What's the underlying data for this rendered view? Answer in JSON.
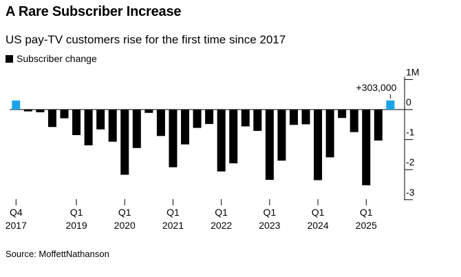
{
  "header": {
    "title": "A Rare Subscriber Increase",
    "subtitle": "US pay-TV customers rise for the first time since 2017"
  },
  "legend": {
    "label": "Subscriber change"
  },
  "source": "Source: MoffettNathanson",
  "colors": {
    "bar": "#000000",
    "highlight": "#1aa3e8",
    "axis": "#000000"
  },
  "chart_data": {
    "type": "bar",
    "ylabel": "",
    "ylim": [
      -3.1,
      1.0
    ],
    "y_ticks": [
      {
        "value": 1,
        "label": "1M"
      },
      {
        "value": 0,
        "label": "0"
      },
      {
        "value": -1,
        "label": "-1"
      },
      {
        "value": -2,
        "label": "-2"
      },
      {
        "value": -3,
        "label": "-3"
      }
    ],
    "categories": [
      "Q4 2017",
      "Q1 2018",
      "Q2 2018",
      "Q3 2018",
      "Q4 2018",
      "Q1 2019",
      "Q2 2019",
      "Q3 2019",
      "Q4 2019",
      "Q1 2020",
      "Q2 2020",
      "Q3 2020",
      "Q4 2020",
      "Q1 2021",
      "Q2 2021",
      "Q3 2021",
      "Q4 2021",
      "Q1 2022",
      "Q2 2022",
      "Q3 2022",
      "Q4 2022",
      "Q1 2023",
      "Q2 2023",
      "Q3 2023",
      "Q4 2023",
      "Q1 2024",
      "Q2 2024",
      "Q3 2024",
      "Q4 2024",
      "Q1 2025",
      "Q2 2025",
      "Q3 2025"
    ],
    "values": [
      0.3,
      -0.06,
      -0.09,
      -0.58,
      -0.29,
      -0.85,
      -1.19,
      -0.66,
      -1.07,
      -2.17,
      -1.28,
      -0.11,
      -0.88,
      -1.92,
      -1.16,
      -0.61,
      -0.48,
      -2.06,
      -1.79,
      -0.56,
      -0.71,
      -2.34,
      -1.7,
      -0.51,
      -0.49,
      -2.35,
      -1.59,
      -0.28,
      -0.75,
      -2.52,
      -1.03,
      0.303
    ],
    "highlighted_indices": [
      0,
      31
    ],
    "x_tick_labels": [
      {
        "index": 0,
        "line1": "Q4",
        "line2": "2017"
      },
      {
        "index": 5,
        "line1": "Q1",
        "line2": "2019"
      },
      {
        "index": 9,
        "line1": "Q1",
        "line2": "2020"
      },
      {
        "index": 13,
        "line1": "Q1",
        "line2": "2021"
      },
      {
        "index": 17,
        "line1": "Q1",
        "line2": "2022"
      },
      {
        "index": 21,
        "line1": "Q1",
        "line2": "2023"
      },
      {
        "index": 25,
        "line1": "Q1",
        "line2": "2024"
      },
      {
        "index": 29,
        "line1": "Q1",
        "line2": "2025"
      }
    ],
    "annotation": {
      "index": 31,
      "text": "+303,000"
    }
  }
}
